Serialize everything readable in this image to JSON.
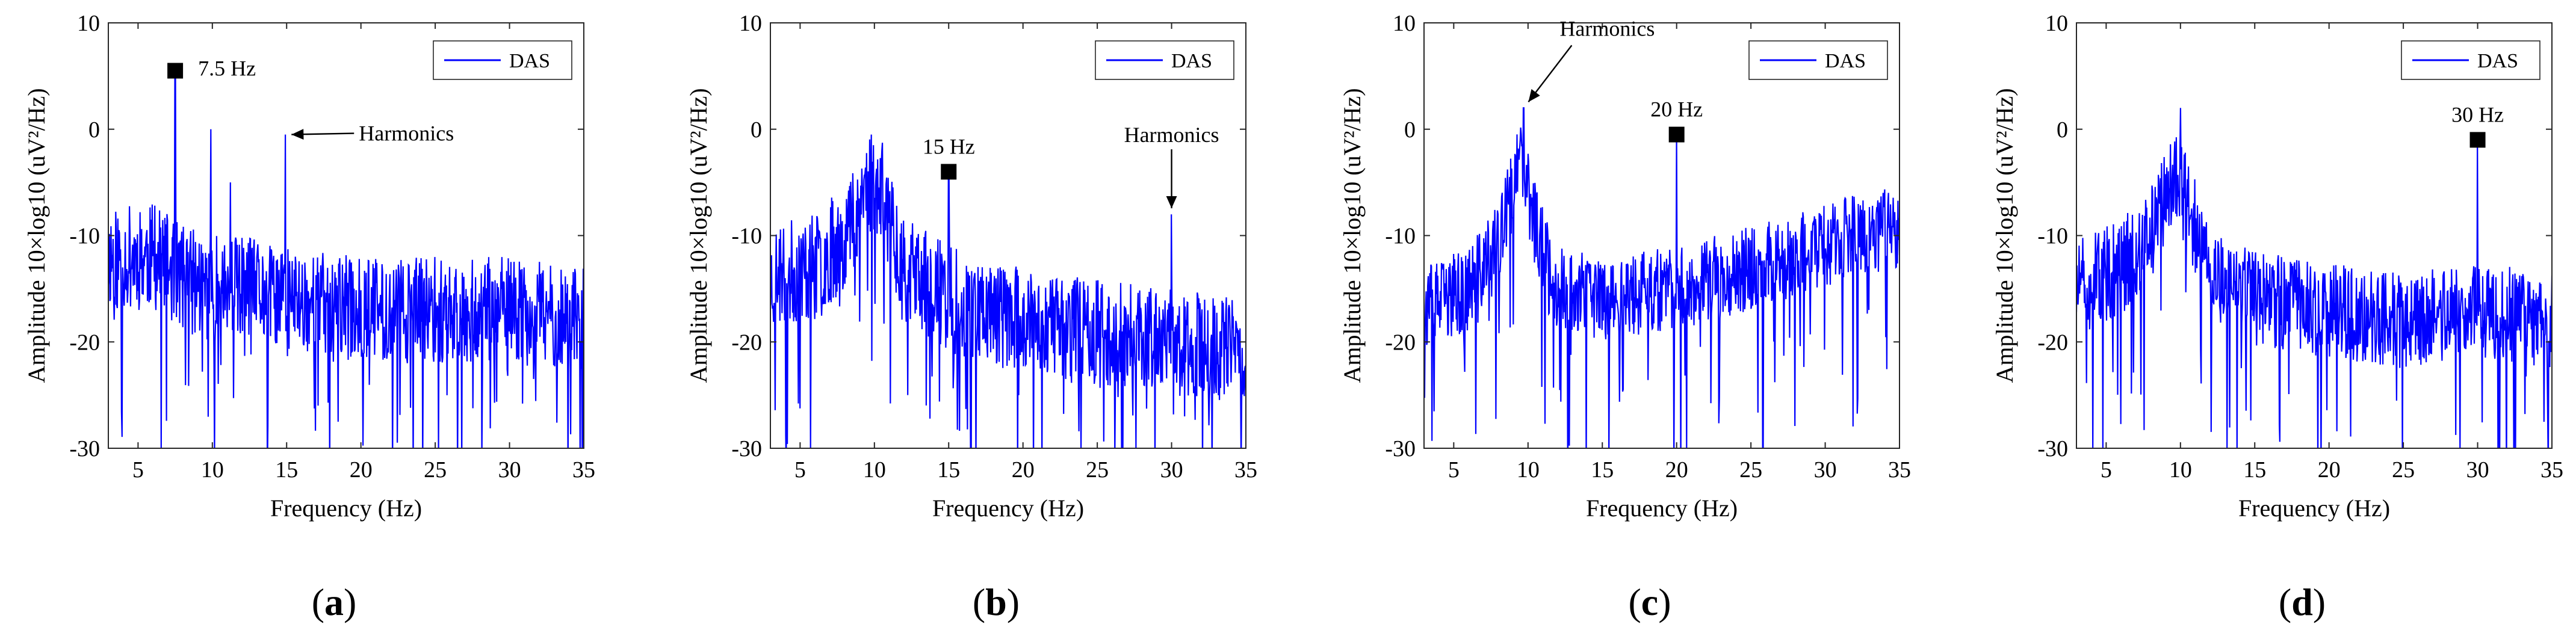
{
  "figure": {
    "panel_labels": [
      "(a)",
      "(b)",
      "(c)",
      "(d)"
    ],
    "series_color": "#0000ff",
    "axis_color": "#262626"
  },
  "chart_data": [
    {
      "type": "line",
      "panel_label": "(a)",
      "xlabel": "Frequency (Hz)",
      "ylabel": "Amplitude 10×log10 (uV²/Hz)",
      "xlim": [
        3,
        35
      ],
      "ylim": [
        -30,
        10
      ],
      "xticks": [
        5,
        10,
        15,
        20,
        25,
        30,
        35
      ],
      "yticks": [
        10,
        0,
        -10,
        -20,
        -30
      ],
      "legend": "DAS",
      "legend_position": "top-right",
      "series": [
        {
          "name": "DAS",
          "baseline": [
            [
              3,
              -12
            ],
            [
              6,
              -12
            ],
            [
              8,
              -14
            ],
            [
              10,
              -15
            ],
            [
              12,
              -15
            ],
            [
              15,
              -16
            ],
            [
              20,
              -17
            ],
            [
              25,
              -17
            ],
            [
              30,
              -17
            ],
            [
              35,
              -18
            ]
          ],
          "noise_amplitude": 5,
          "seed": 11,
          "peaks": [
            [
              7.5,
              5.5
            ],
            [
              9.9,
              0
            ],
            [
              14.9,
              -0.5
            ],
            [
              11.2,
              -5
            ]
          ]
        }
      ],
      "markers": [
        {
          "x": 7.5,
          "y": 5.5,
          "label": "7.5 Hz"
        }
      ],
      "annotations": [
        {
          "text": "Harmonics",
          "x": 15.0,
          "y": -0.5
        }
      ]
    },
    {
      "type": "line",
      "panel_label": "(b)",
      "xlabel": "Frequency (Hz)",
      "ylabel": "Amplitude 10×log10 (uV²/Hz)",
      "xlim": [
        3,
        35
      ],
      "ylim": [
        -30,
        10
      ],
      "xticks": [
        5,
        10,
        15,
        20,
        25,
        30,
        35
      ],
      "yticks": [
        10,
        0,
        -10,
        -20,
        -30
      ],
      "legend": "DAS",
      "legend_position": "top-right",
      "series": [
        {
          "name": "DAS",
          "baseline": [
            [
              3,
              -14
            ],
            [
              6,
              -13
            ],
            [
              8,
              -10
            ],
            [
              9.5,
              -5
            ],
            [
              10.5,
              -6
            ],
            [
              12,
              -13
            ],
            [
              15,
              -16
            ],
            [
              20,
              -18
            ],
            [
              25,
              -19
            ],
            [
              30,
              -20
            ],
            [
              35,
              -21
            ]
          ],
          "noise_amplitude": 5,
          "seed": 23,
          "peaks": [
            [
              9.8,
              -0.5
            ],
            [
              15.0,
              -4
            ],
            [
              30.0,
              -8
            ]
          ]
        }
      ],
      "markers": [
        {
          "x": 15.0,
          "y": -4,
          "label": "15 Hz"
        }
      ],
      "annotations": [
        {
          "text": "Harmonics",
          "x": 30.0,
          "y": -8
        }
      ]
    },
    {
      "type": "line",
      "panel_label": "(c)",
      "xlabel": "Frequency (Hz)",
      "ylabel": "Amplitude 10×log10 (uV²/Hz)",
      "xlim": [
        3,
        35
      ],
      "ylim": [
        -30,
        10
      ],
      "xticks": [
        5,
        10,
        15,
        20,
        25,
        30,
        35
      ],
      "yticks": [
        10,
        0,
        -10,
        -20,
        -30
      ],
      "legend": "DAS",
      "legend_position": "top-right",
      "series": [
        {
          "name": "DAS",
          "baseline": [
            [
              3,
              -17
            ],
            [
              6,
              -15
            ],
            [
              8,
              -11
            ],
            [
              9.5,
              -3
            ],
            [
              10.5,
              -9
            ],
            [
              12,
              -15
            ],
            [
              15,
              -16
            ],
            [
              20,
              -15
            ],
            [
              25,
              -13
            ],
            [
              30,
              -11
            ],
            [
              35,
              -9
            ]
          ],
          "noise_amplitude": 4,
          "seed": 37,
          "peaks": [
            [
              9.7,
              2
            ],
            [
              20.0,
              -0.5
            ]
          ]
        }
      ],
      "markers": [
        {
          "x": 20.0,
          "y": -0.5,
          "label": "20 Hz"
        }
      ],
      "annotations": [
        {
          "text": "Harmonics",
          "x": 9.7,
          "y": 2
        }
      ]
    },
    {
      "type": "line",
      "panel_label": "(d)",
      "xlabel": "Frequency (Hz)",
      "ylabel": "Amplitude 10×log10 (uV²/Hz)",
      "xlim": [
        3,
        35
      ],
      "ylim": [
        -30,
        10
      ],
      "xticks": [
        5,
        10,
        15,
        20,
        25,
        30,
        35
      ],
      "yticks": [
        10,
        0,
        -10,
        -20,
        -30
      ],
      "legend": "DAS",
      "legend_position": "top-right",
      "series": [
        {
          "name": "DAS",
          "baseline": [
            [
              3,
              -15
            ],
            [
              6,
              -13
            ],
            [
              8,
              -10
            ],
            [
              9.5,
              -4
            ],
            [
              10.5,
              -7
            ],
            [
              12,
              -14
            ],
            [
              15,
              -16
            ],
            [
              20,
              -17
            ],
            [
              25,
              -18
            ],
            [
              30,
              -17
            ],
            [
              35,
              -18
            ]
          ],
          "noise_amplitude": 4.5,
          "seed": 51,
          "peaks": [
            [
              10.0,
              2
            ],
            [
              30.0,
              -1
            ]
          ]
        }
      ],
      "markers": [
        {
          "x": 30.0,
          "y": -1,
          "label": "30 Hz"
        }
      ],
      "annotations": []
    }
  ]
}
